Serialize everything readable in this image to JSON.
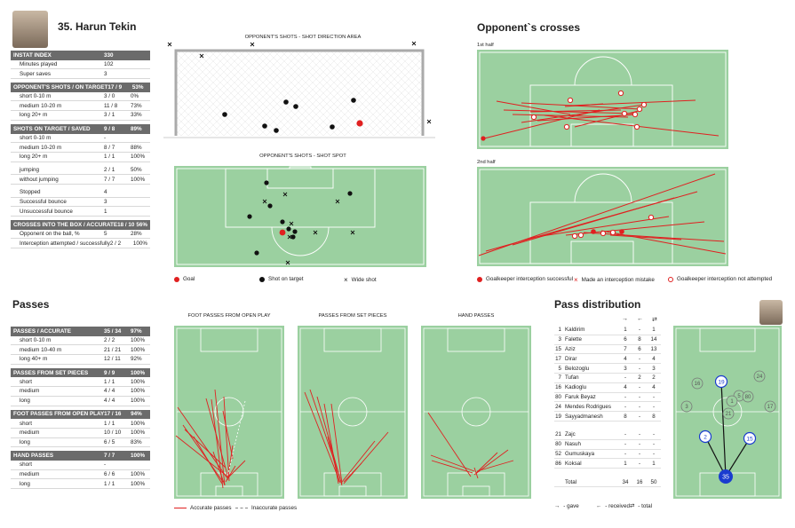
{
  "player": {
    "title": "35. Harun Tekin"
  },
  "stats": {
    "instat_index": {
      "label": "INSTAT INDEX",
      "value": "330"
    },
    "minutes": {
      "label": "Minutes played",
      "value": "102"
    },
    "super_saves": {
      "label": "Super saves",
      "value": "3"
    },
    "opp_shots": {
      "label": "OPPONENT'S SHOTS / ON TARGET",
      "value": "17 / 9",
      "pct": "53%"
    },
    "opp_short": {
      "label": "short 0-10 m",
      "value": "3 / 0",
      "pct": "0%"
    },
    "opp_medium": {
      "label": "medium 10-20 m",
      "value": "11 / 8",
      "pct": "73%"
    },
    "opp_long": {
      "label": "long 20+ m",
      "value": "3 / 1",
      "pct": "33%"
    },
    "saved": {
      "label": "SHOTS ON TARGET / SAVED",
      "value": "9 / 8",
      "pct": "89%"
    },
    "saved_short": {
      "label": "short 0-10 m",
      "value": "-",
      "pct": ""
    },
    "saved_medium": {
      "label": "medium 10-20 m",
      "value": "8 / 7",
      "pct": "88%"
    },
    "saved_long": {
      "label": "long 20+ m",
      "value": "1 / 1",
      "pct": "100%"
    },
    "jumping": {
      "label": "jumping",
      "value": "2 / 1",
      "pct": "50%"
    },
    "no_jumping": {
      "label": "without jumping",
      "value": "7 / 7",
      "pct": "100%"
    },
    "stopped": {
      "label": "Stopped",
      "value": "4",
      "pct": ""
    },
    "succ_bounce": {
      "label": "Successful bounce",
      "value": "3",
      "pct": ""
    },
    "unsucc_bounce": {
      "label": "Unsuccessful bounce",
      "value": "1",
      "pct": ""
    },
    "crosses": {
      "label": "CROSSES INTO THE BOX / ACCURATE",
      "value": "18 / 10",
      "pct": "56%"
    },
    "opp_on_ball": {
      "label": "Opponent on the ball, %",
      "value": "5",
      "pct": "28%"
    },
    "interception": {
      "label": "Interception attempted / successfully",
      "value": "2 / 2",
      "pct": "100%"
    }
  },
  "shots": {
    "direction_title": "OPPONENT'S SHOTS - SHOT DIRECTION AREA",
    "spot_title": "OPPONENT'S SHOTS - SHOT SPOT",
    "legend_goal": "Goal",
    "legend_on_target": "Shot on target",
    "legend_wide": "Wide shot"
  },
  "crosses_section": {
    "title": "Opponent`s crosses",
    "first_half": "1st half",
    "second_half": "2nd half",
    "legend_success": "Goalkeeper interception successful",
    "legend_mistake": "Made an interception mistake",
    "legend_not": "Goalkeeper interception not attempted"
  },
  "passes": {
    "title": "Passes",
    "rows": [
      {
        "label": "PASSES / ACCURATE",
        "value": "35 / 34",
        "pct": "97%",
        "hdr": true
      },
      {
        "label": "short 0-10 m",
        "value": "2 / 2",
        "pct": "100%"
      },
      {
        "label": "medium 10-40 m",
        "value": "21 / 21",
        "pct": "100%"
      },
      {
        "label": "long 40+ m",
        "value": "12 / 11",
        "pct": "92%"
      },
      {
        "label": "PASSES FROM SET PIECES",
        "value": "9 / 9",
        "pct": "100%",
        "hdr": true
      },
      {
        "label": "short",
        "value": "1 / 1",
        "pct": "100%"
      },
      {
        "label": "medium",
        "value": "4 / 4",
        "pct": "100%"
      },
      {
        "label": "long",
        "value": "4 / 4",
        "pct": "100%"
      },
      {
        "label": "FOOT PASSES FROM OPEN PLAY",
        "value": "17 / 16",
        "pct": "94%",
        "hdr": true
      },
      {
        "label": "short",
        "value": "1 / 1",
        "pct": "100%"
      },
      {
        "label": "medium",
        "value": "10 / 10",
        "pct": "100%"
      },
      {
        "label": "long",
        "value": "6 / 5",
        "pct": "83%"
      },
      {
        "label": "HAND PASSES",
        "value": "7 / 7",
        "pct": "100%",
        "hdr": true
      },
      {
        "label": "short",
        "value": "-",
        "pct": ""
      },
      {
        "label": "medium",
        "value": "6 / 6",
        "pct": "100%"
      },
      {
        "label": "long",
        "value": "1 / 1",
        "pct": "100%"
      }
    ],
    "foot_title": "FOOT PASSES FROM OPEN PLAY",
    "set_title": "PASSES FROM SET PIECES",
    "hand_title": "HAND PASSES",
    "legend_accurate": "Accurate passes",
    "legend_inaccurate": "Inaccurate passes"
  },
  "distribution": {
    "title": "Pass distribution",
    "players": [
      {
        "n": "1",
        "name": "Kaldirim",
        "gave": "1",
        "rec": "-",
        "tot": "1"
      },
      {
        "n": "3",
        "name": "Falette",
        "gave": "6",
        "rec": "8",
        "tot": "14"
      },
      {
        "n": "15",
        "name": "Aziz",
        "gave": "7",
        "rec": "6",
        "tot": "13"
      },
      {
        "n": "17",
        "name": "Dirar",
        "gave": "4",
        "rec": "-",
        "tot": "4"
      },
      {
        "n": "5",
        "name": "Belozoglu",
        "gave": "3",
        "rec": "-",
        "tot": "3"
      },
      {
        "n": "7",
        "name": "Tufan",
        "gave": "-",
        "rec": "2",
        "tot": "2"
      },
      {
        "n": "16",
        "name": "Kadioglu",
        "gave": "4",
        "rec": "-",
        "tot": "4"
      },
      {
        "n": "80",
        "name": "Faruk Beyaz",
        "gave": "-",
        "rec": "-",
        "tot": "-"
      },
      {
        "n": "24",
        "name": "Mendes Rodrigues",
        "gave": "-",
        "rec": "-",
        "tot": "-"
      },
      {
        "n": "19",
        "name": "Sayyadmanesh",
        "gave": "8",
        "rec": "-",
        "tot": "8"
      }
    ],
    "subs": [
      {
        "n": "21",
        "name": "Zajc",
        "gave": "-",
        "rec": "-",
        "tot": "-"
      },
      {
        "n": "80",
        "name": "Nasuh",
        "gave": "-",
        "rec": "-",
        "tot": "-"
      },
      {
        "n": "52",
        "name": "Gumuskaya",
        "gave": "-",
        "rec": "-",
        "tot": "-"
      },
      {
        "n": "86",
        "name": "Koksal",
        "gave": "1",
        "rec": "-",
        "tot": "1"
      }
    ],
    "total": {
      "label": "Total",
      "gave": "34",
      "rec": "16",
      "tot": "50"
    },
    "legend_gave": "- gave",
    "legend_rec": "- received",
    "legend_tot": "- total"
  },
  "colors": {
    "pitch": "#9bd0a0",
    "red": "#e02020",
    "header": "#6b6b6b",
    "blue": "#1a3ccf"
  }
}
